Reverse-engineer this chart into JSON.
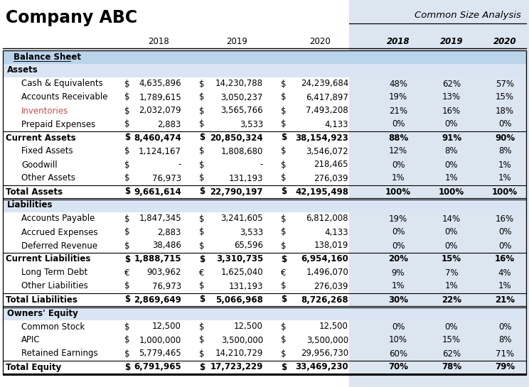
{
  "title_left": "Company ABC",
  "title_right": "Common Size Analysis",
  "rows": [
    {
      "label": "Balance Sheet",
      "type": "section_header",
      "indent": 1,
      "has_data": false
    },
    {
      "label": "Assets",
      "type": "subsection_header",
      "indent": 0,
      "has_data": false
    },
    {
      "label": "Cash & Equivalents",
      "type": "data",
      "indent": 1,
      "sym": [
        "$",
        "$",
        "$"
      ],
      "v2018": "4,635,896",
      "v2019": "14,230,788",
      "v2020": "24,239,684",
      "p2018": "48%",
      "p2019": "62%",
      "p2020": "57%",
      "highlight": false
    },
    {
      "label": "Accounts Receivable",
      "type": "data",
      "indent": 1,
      "sym": [
        "$",
        "$",
        "$"
      ],
      "v2018": "1,789,615",
      "v2019": "3,050,237",
      "v2020": "6,417,897",
      "p2018": "19%",
      "p2019": "13%",
      "p2020": "15%",
      "highlight": false
    },
    {
      "label": "Inventories",
      "type": "data",
      "indent": 1,
      "sym": [
        "$",
        "$",
        "$"
      ],
      "v2018": "2,032,079",
      "v2019": "3,565,766",
      "v2020": "7,493,208",
      "p2018": "21%",
      "p2019": "16%",
      "p2020": "18%",
      "highlight": true
    },
    {
      "label": "Prepaid Expenses",
      "type": "data",
      "indent": 1,
      "sym": [
        "$",
        "$",
        "$"
      ],
      "v2018": "2,883",
      "v2019": "3,533",
      "v2020": "4,133",
      "p2018": "0%",
      "p2019": "0%",
      "p2020": "0%",
      "highlight": false
    },
    {
      "label": "Current Assets",
      "type": "subtotal",
      "indent": 0,
      "sym": [
        "$",
        "$",
        "$"
      ],
      "v2018": "8,460,474",
      "v2019": "20,850,324",
      "v2020": "38,154,923",
      "p2018": "88%",
      "p2019": "91%",
      "p2020": "90%",
      "highlight": false
    },
    {
      "label": "Fixed Assets",
      "type": "data",
      "indent": 1,
      "sym": [
        "$",
        "$",
        "$"
      ],
      "v2018": "1,124,167",
      "v2019": "1,808,680",
      "v2020": "3,546,072",
      "p2018": "12%",
      "p2019": "8%",
      "p2020": "8%",
      "highlight": false
    },
    {
      "label": "Goodwill",
      "type": "data",
      "indent": 1,
      "sym": [
        "$",
        "$",
        "$"
      ],
      "v2018": "-",
      "v2019": "-",
      "v2020": "218,465",
      "p2018": "0%",
      "p2019": "0%",
      "p2020": "1%",
      "highlight": false
    },
    {
      "label": "Other Assets",
      "type": "data",
      "indent": 1,
      "sym": [
        "$",
        "$",
        "$"
      ],
      "v2018": "76,973",
      "v2019": "131,193",
      "v2020": "276,039",
      "p2018": "1%",
      "p2019": "1%",
      "p2020": "1%",
      "highlight": false
    },
    {
      "label": "Total Assets",
      "type": "total",
      "indent": 0,
      "sym": [
        "$",
        "$",
        "$"
      ],
      "v2018": "9,661,614",
      "v2019": "22,790,197",
      "v2020": "42,195,498",
      "p2018": "100%",
      "p2019": "100%",
      "p2020": "100%",
      "highlight": false
    },
    {
      "label": "Liabilities",
      "type": "subsection_header",
      "indent": 0,
      "has_data": false
    },
    {
      "label": "Accounts Payable",
      "type": "data",
      "indent": 1,
      "sym": [
        "$",
        "$",
        "$"
      ],
      "v2018": "1,847,345",
      "v2019": "3,241,605",
      "v2020": "6,812,008",
      "p2018": "19%",
      "p2019": "14%",
      "p2020": "16%",
      "highlight": false
    },
    {
      "label": "Accrued Expenses",
      "type": "data",
      "indent": 1,
      "sym": [
        "$",
        "$",
        "$"
      ],
      "v2018": "2,883",
      "v2019": "3,533",
      "v2020": "4,133",
      "p2018": "0%",
      "p2019": "0%",
      "p2020": "0%",
      "highlight": false
    },
    {
      "label": "Deferred Revenue",
      "type": "data",
      "indent": 1,
      "sym": [
        "$",
        "$",
        "$"
      ],
      "v2018": "38,486",
      "v2019": "65,596",
      "v2020": "138,019",
      "p2018": "0%",
      "p2019": "0%",
      "p2020": "0%",
      "highlight": false
    },
    {
      "label": "Current Liabilities",
      "type": "subtotal",
      "indent": 0,
      "sym": [
        "$",
        "$",
        "$"
      ],
      "v2018": "1,888,715",
      "v2019": "3,310,735",
      "v2020": "6,954,160",
      "p2018": "20%",
      "p2019": "15%",
      "p2020": "16%",
      "highlight": false
    },
    {
      "label": "Long Term Debt",
      "type": "data",
      "indent": 1,
      "sym": [
        "€",
        "€",
        "€"
      ],
      "v2018": "903,962",
      "v2019": "1,625,040",
      "v2020": "1,496,070",
      "p2018": "9%",
      "p2019": "7%",
      "p2020": "4%",
      "highlight": false
    },
    {
      "label": "Other Liabilities",
      "type": "data",
      "indent": 1,
      "sym": [
        "$",
        "$",
        "$"
      ],
      "v2018": "76,973",
      "v2019": "131,193",
      "v2020": "276,039",
      "p2018": "1%",
      "p2019": "1%",
      "p2020": "1%",
      "highlight": false
    },
    {
      "label": "Total Liabilities",
      "type": "total",
      "indent": 0,
      "sym": [
        "$",
        "$",
        "$"
      ],
      "v2018": "2,869,649",
      "v2019": "5,066,968",
      "v2020": "8,726,268",
      "p2018": "30%",
      "p2019": "22%",
      "p2020": "21%",
      "highlight": false
    },
    {
      "label": "Owners' Equity",
      "type": "subsection_header",
      "indent": 0,
      "has_data": false
    },
    {
      "label": "Common Stock",
      "type": "data",
      "indent": 1,
      "sym": [
        "$",
        "$",
        "$"
      ],
      "v2018": "12,500",
      "v2019": "12,500",
      "v2020": "12,500",
      "p2018": "0%",
      "p2019": "0%",
      "p2020": "0%",
      "highlight": false
    },
    {
      "label": "APIC",
      "type": "data",
      "indent": 1,
      "sym": [
        "$",
        "$",
        "$"
      ],
      "v2018": "1,000,000",
      "v2019": "3,500,000",
      "v2020": "3,500,000",
      "p2018": "10%",
      "p2019": "15%",
      "p2020": "8%",
      "highlight": false
    },
    {
      "label": "Retained Earnings",
      "type": "data",
      "indent": 1,
      "sym": [
        "$",
        "$",
        "$"
      ],
      "v2018": "5,779,465",
      "v2019": "14,210,729",
      "v2020": "29,956,730",
      "p2018": "60%",
      "p2019": "62%",
      "p2020": "71%",
      "highlight": false
    },
    {
      "label": "Total Equity",
      "type": "total",
      "indent": 0,
      "sym": [
        "$",
        "$",
        "$"
      ],
      "v2018": "6,791,965",
      "v2019": "17,723,229",
      "v2020": "33,469,230",
      "p2018": "70%",
      "p2019": "78%",
      "p2020": "79%",
      "highlight": false
    }
  ],
  "colors": {
    "section_header_bg": "#bad4ea",
    "subsection_header_bg": "#d9e5f3",
    "right_panel_bg": "#dce6f1",
    "highlight_text": "#c0504d",
    "normal_text": "#000000"
  }
}
